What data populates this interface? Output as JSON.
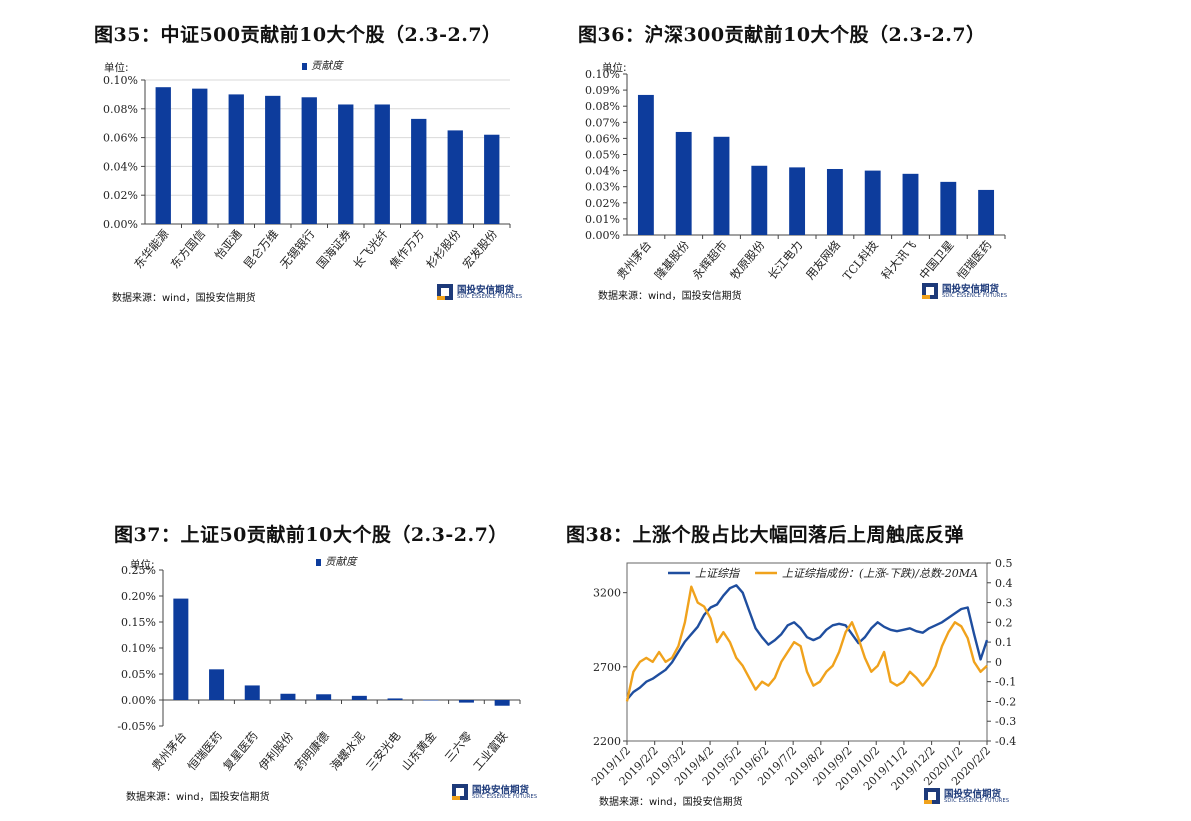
{
  "colors": {
    "bar": "#0d3c9c",
    "line1": "#1f4e9f",
    "line2": "#f0a21c",
    "grid": "#d9d9d9"
  },
  "source_text": "数据来源：wind，国投安信期货",
  "logo": {
    "name": "国投安信期货",
    "sub": "SDIC ESSENCE FUTURES"
  },
  "chart_data": [
    {
      "id": "fig35",
      "type": "bar",
      "title": "图35：中证500贡献前10大个股（2.3-2.7）",
      "unit_label": "单位:",
      "legend": "贡献度",
      "categories": [
        "东华能源",
        "东方国信",
        "怡亚通",
        "昆仑万维",
        "无锡银行",
        "国海证券",
        "长飞光纤",
        "焦作万方",
        "杉杉股份",
        "宏发股份"
      ],
      "values": [
        0.095,
        0.094,
        0.09,
        0.089,
        0.088,
        0.083,
        0.083,
        0.073,
        0.065,
        0.062
      ],
      "ylim": [
        0,
        0.1
      ],
      "yticks": [
        "0.00%",
        "0.02%",
        "0.04%",
        "0.06%",
        "0.08%",
        "0.10%"
      ],
      "grid": true
    },
    {
      "id": "fig36",
      "type": "bar",
      "title": "图36：沪深300贡献前10大个股（2.3-2.7）",
      "unit_label": "单位:",
      "categories": [
        "贵州茅台",
        "隆基股份",
        "永辉超市",
        "牧原股份",
        "长江电力",
        "用友网络",
        "TCL科技",
        "科大讯飞",
        "中国卫星",
        "恒瑞医药"
      ],
      "values": [
        0.087,
        0.064,
        0.061,
        0.043,
        0.042,
        0.041,
        0.04,
        0.038,
        0.033,
        0.028
      ],
      "ylim": [
        0,
        0.1
      ],
      "yticks": [
        "0.00%",
        "0.01%",
        "0.02%",
        "0.03%",
        "0.04%",
        "0.05%",
        "0.06%",
        "0.07%",
        "0.08%",
        "0.09%",
        "0.10%"
      ],
      "grid": false
    },
    {
      "id": "fig37",
      "type": "bar",
      "title": "图37：上证50贡献前10大个股（2.3-2.7）",
      "unit_label": "单位:",
      "legend": "贡献度",
      "categories": [
        "贵州茅台",
        "恒瑞医药",
        "复星医药",
        "伊利股份",
        "药明康德",
        "海螺水泥",
        "三安光电",
        "山东黄金",
        "三六零",
        "工业富联"
      ],
      "values": [
        0.195,
        0.059,
        0.028,
        0.012,
        0.011,
        0.008,
        0.003,
        0.0,
        -0.005,
        -0.011
      ],
      "ylim": [
        -0.05,
        0.25
      ],
      "yticks": [
        "-0.05%",
        "0.00%",
        "0.05%",
        "0.10%",
        "0.15%",
        "0.20%",
        "0.25%"
      ],
      "grid": false
    },
    {
      "id": "fig38",
      "type": "line",
      "title": "图38：上涨个股占比大幅回落后上周触底反弹",
      "series": [
        {
          "name": "上证综指",
          "axis": "left",
          "values": [
            2480,
            2530,
            2560,
            2600,
            2620,
            2650,
            2680,
            2730,
            2800,
            2870,
            2920,
            2970,
            3050,
            3100,
            3120,
            3180,
            3230,
            3250,
            3200,
            3080,
            2960,
            2900,
            2850,
            2880,
            2920,
            2980,
            3000,
            2960,
            2900,
            2880,
            2900,
            2950,
            2980,
            2990,
            2980,
            2920,
            2860,
            2900,
            2960,
            3000,
            2970,
            2950,
            2940,
            2950,
            2960,
            2940,
            2930,
            2960,
            2980,
            3000,
            3030,
            3060,
            3090,
            3100,
            2920,
            2750,
            2880
          ]
        },
        {
          "name": "上证综指成份：(上涨-下跌)/总数-20MA",
          "axis": "right",
          "values": [
            -0.2,
            -0.05,
            0.0,
            0.02,
            0.0,
            0.05,
            0.0,
            0.02,
            0.08,
            0.2,
            0.38,
            0.3,
            0.28,
            0.22,
            0.1,
            0.15,
            0.1,
            0.02,
            -0.02,
            -0.08,
            -0.14,
            -0.1,
            -0.12,
            -0.08,
            0.0,
            0.05,
            0.1,
            0.08,
            -0.05,
            -0.12,
            -0.1,
            -0.05,
            -0.02,
            0.05,
            0.15,
            0.2,
            0.12,
            0.02,
            -0.05,
            -0.02,
            0.05,
            -0.1,
            -0.12,
            -0.1,
            -0.05,
            -0.08,
            -0.12,
            -0.08,
            -0.02,
            0.08,
            0.15,
            0.2,
            0.18,
            0.12,
            0.0,
            -0.05,
            -0.02
          ]
        }
      ],
      "xticks": [
        "2019/1/2",
        "2019/2/2",
        "2019/3/2",
        "2019/4/2",
        "2019/5/2",
        "2019/6/2",
        "2019/7/2",
        "2019/8/2",
        "2019/9/2",
        "2019/10/2",
        "2019/11/2",
        "2019/12/2",
        "2020/1/2",
        "2020/2/2"
      ],
      "yleft": {
        "ticks": [
          2200,
          2700,
          3200
        ],
        "lim": [
          2200,
          3400
        ]
      },
      "yright": {
        "ticks": [
          "0.5",
          "0.4",
          "0.3",
          "0.2",
          "0.1",
          "0",
          "-0.1",
          "-0.2",
          "-0.3",
          "-0.4"
        ],
        "lim": [
          -0.4,
          0.5
        ]
      },
      "legend_placement": "top"
    }
  ]
}
